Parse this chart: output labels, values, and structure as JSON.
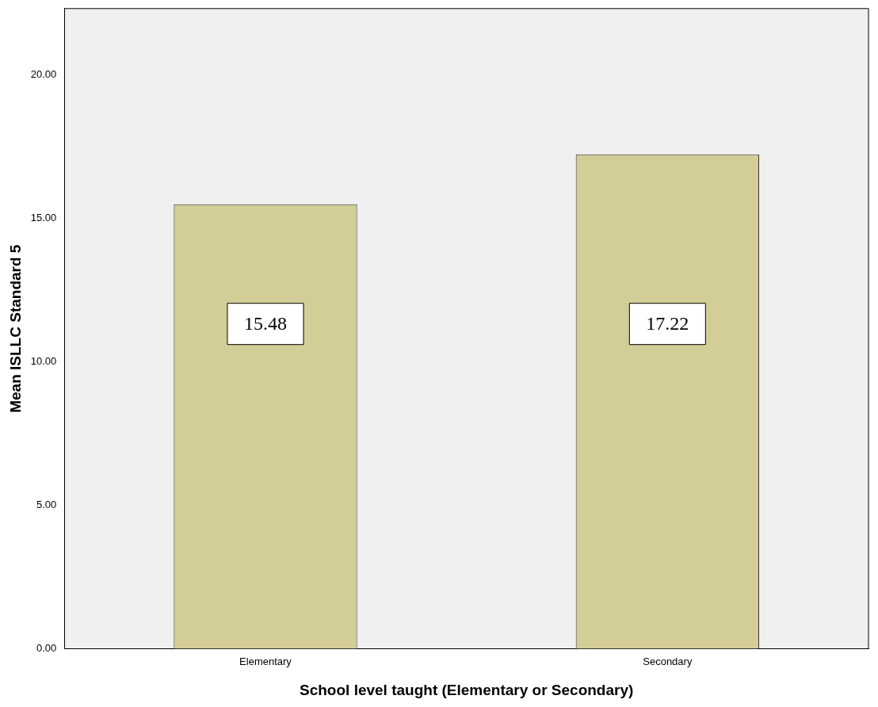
{
  "chart_data": {
    "type": "bar",
    "xlabel": "School level taught (Elementary or Secondary)",
    "ylabel": "Mean ISLLC Standard 5",
    "categories": [
      "Elementary",
      "Secondary"
    ],
    "values": [
      15.48,
      17.22
    ],
    "color": "#d3ce97",
    "ylim": [
      0,
      22.3
    ],
    "yticks": [
      {
        "value": 0,
        "label": "0.00"
      },
      {
        "value": 5,
        "label": "5.00"
      },
      {
        "value": 10,
        "label": "10.00"
      },
      {
        "value": 15,
        "label": "15.00"
      },
      {
        "value": 20,
        "label": "20.00"
      }
    ],
    "grid": false,
    "legend": false,
    "data_labels": true
  }
}
